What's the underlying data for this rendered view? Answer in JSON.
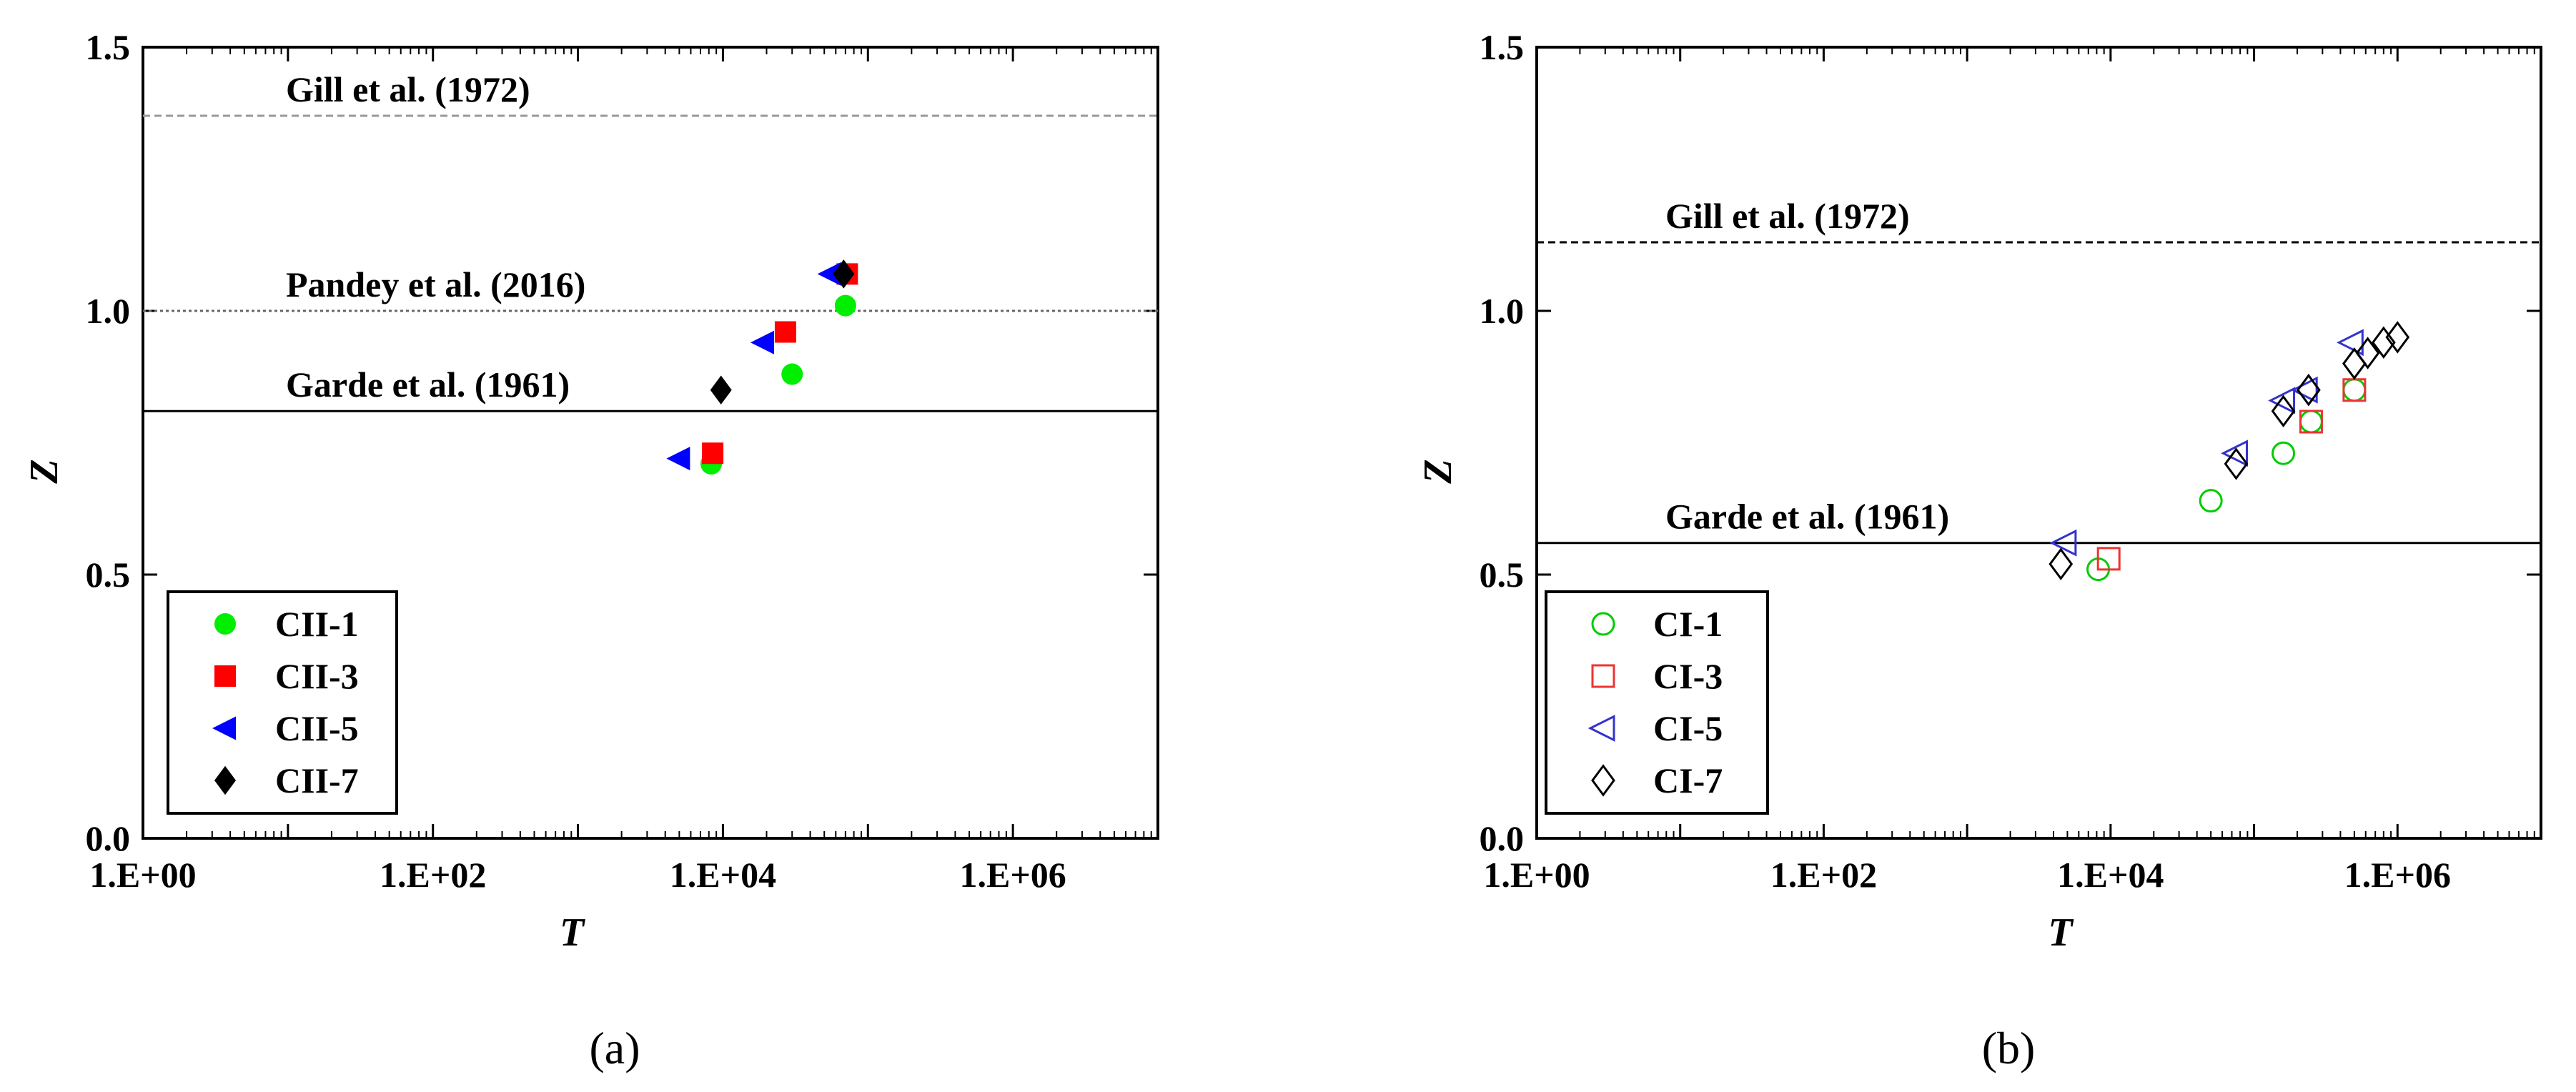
{
  "chart_data": [
    {
      "type": "scatter",
      "panel_label": "(a)",
      "xlabel": "T",
      "ylabel": "Z",
      "x_scale": "log",
      "xlim": [
        1,
        10000000
      ],
      "ylim": [
        0,
        1.5
      ],
      "x_ticks": [
        1,
        100,
        10000,
        1000000
      ],
      "x_tick_labels": [
        "1.E+00",
        "1.E+02",
        "1.E+04",
        "1.E+06"
      ],
      "y_ticks": [
        0,
        0.5,
        1.0,
        1.5
      ],
      "y_tick_labels": [
        "0.0",
        "0.5",
        "1.0",
        "1.5"
      ],
      "legend_position": "bottom-left",
      "reference_lines": [
        {
          "y": 1.37,
          "label": "Gill et al. (1972)",
          "style": "dashed",
          "color": "#999999"
        },
        {
          "y": 1.0,
          "label": "Pandey et al. (2016)",
          "style": "dotted",
          "color": "#666666"
        },
        {
          "y": 0.81,
          "label": "Garde et al. (1961)",
          "style": "solid",
          "color": "#000000"
        }
      ],
      "series": [
        {
          "name": "CII-1",
          "marker": "circle",
          "filled": true,
          "color": "#00ee00",
          "points": [
            {
              "x": 8300,
              "y": 0.71
            },
            {
              "x": 30000,
              "y": 0.88
            },
            {
              "x": 70000,
              "y": 1.01
            }
          ]
        },
        {
          "name": "CII-3",
          "marker": "square",
          "filled": true,
          "color": "#ff0000",
          "points": [
            {
              "x": 8500,
              "y": 0.73
            },
            {
              "x": 27000,
              "y": 0.96
            },
            {
              "x": 72000,
              "y": 1.07
            }
          ]
        },
        {
          "name": "CII-5",
          "marker": "triangle-left",
          "filled": true,
          "color": "#0000ff",
          "points": [
            {
              "x": 5000,
              "y": 0.72
            },
            {
              "x": 19000,
              "y": 0.94
            },
            {
              "x": 55000,
              "y": 1.07
            }
          ]
        },
        {
          "name": "CII-7",
          "marker": "diamond",
          "filled": true,
          "color": "#000000",
          "points": [
            {
              "x": 9700,
              "y": 0.85
            },
            {
              "x": 68000,
              "y": 1.07
            }
          ]
        }
      ]
    },
    {
      "type": "scatter",
      "panel_label": "(b)",
      "xlabel": "T",
      "ylabel": "Z",
      "x_scale": "log",
      "xlim": [
        1,
        10000000
      ],
      "ylim": [
        0,
        1.5
      ],
      "x_ticks": [
        1,
        100,
        10000,
        1000000
      ],
      "x_tick_labels": [
        "1.E+00",
        "1.E+02",
        "1.E+04",
        "1.E+06"
      ],
      "y_ticks": [
        0,
        0.5,
        1.0,
        1.5
      ],
      "y_tick_labels": [
        "0.0",
        "0.5",
        "1.0",
        "1.5"
      ],
      "legend_position": "bottom-left",
      "reference_lines": [
        {
          "y": 1.13,
          "label": "Gill et al. (1972)",
          "style": "dashed",
          "color": "#000000"
        },
        {
          "y": 0.56,
          "label": "Garde et al. (1961)",
          "style": "solid",
          "color": "#000000"
        }
      ],
      "series": [
        {
          "name": "CI-1",
          "marker": "circle",
          "filled": false,
          "color": "#00cc00",
          "points": [
            {
              "x": 8200,
              "y": 0.51
            },
            {
              "x": 50000,
              "y": 0.64
            },
            {
              "x": 160000,
              "y": 0.73
            },
            {
              "x": 250000,
              "y": 0.79
            },
            {
              "x": 500000,
              "y": 0.85
            }
          ]
        },
        {
          "name": "CI-3",
          "marker": "square",
          "filled": false,
          "color": "#ee3333",
          "points": [
            {
              "x": 9700,
              "y": 0.53
            },
            {
              "x": 250000,
              "y": 0.79
            },
            {
              "x": 500000,
              "y": 0.85
            }
          ]
        },
        {
          "name": "CI-5",
          "marker": "triangle-left",
          "filled": false,
          "color": "#3333cc",
          "points": [
            {
              "x": 4800,
              "y": 0.56
            },
            {
              "x": 75000,
              "y": 0.73
            },
            {
              "x": 160000,
              "y": 0.83
            },
            {
              "x": 230000,
              "y": 0.85
            },
            {
              "x": 480000,
              "y": 0.94
            }
          ]
        },
        {
          "name": "CI-7",
          "marker": "diamond",
          "filled": false,
          "color": "#000000",
          "points": [
            {
              "x": 4500,
              "y": 0.52
            },
            {
              "x": 75000,
              "y": 0.71
            },
            {
              "x": 160000,
              "y": 0.81
            },
            {
              "x": 240000,
              "y": 0.85
            },
            {
              "x": 500000,
              "y": 0.9
            },
            {
              "x": 620000,
              "y": 0.92
            },
            {
              "x": 800000,
              "y": 0.94
            },
            {
              "x": 1000000,
              "y": 0.95
            }
          ]
        }
      ]
    }
  ]
}
